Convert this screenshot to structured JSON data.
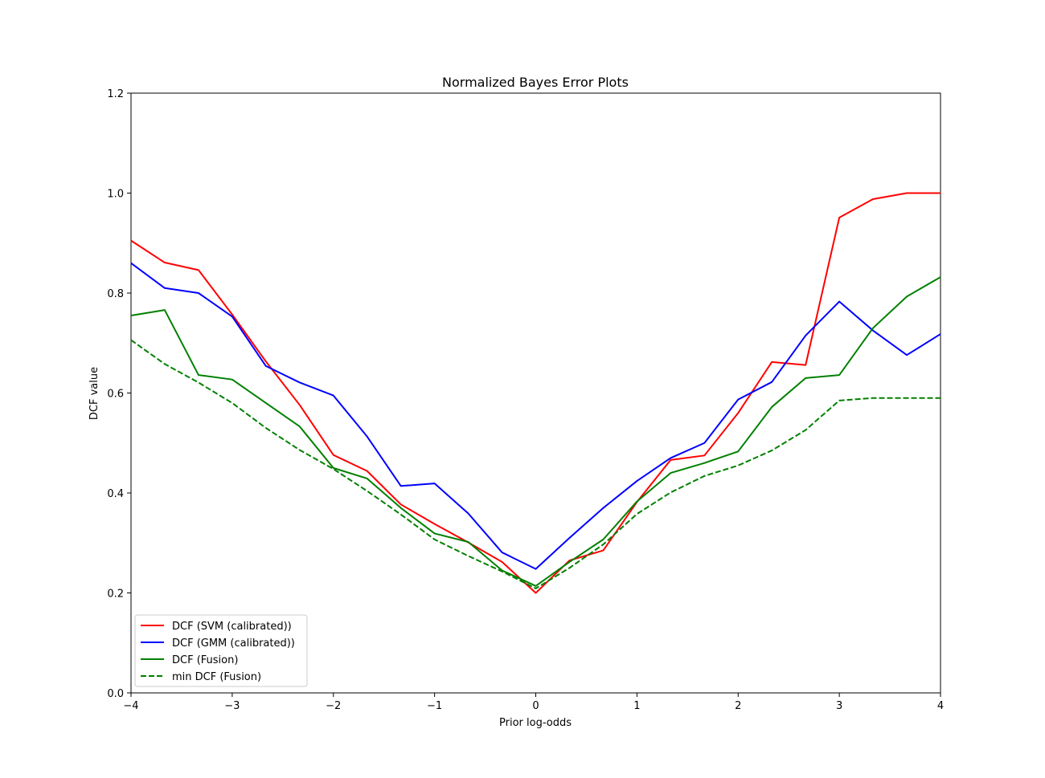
{
  "chart_data": {
    "type": "line",
    "title": "Normalized Bayes Error Plots",
    "xlabel": "Prior log-odds",
    "ylabel": "DCF value",
    "xlim": [
      -4,
      4
    ],
    "ylim": [
      0,
      1.2
    ],
    "x_ticks": [
      -4,
      -3,
      -2,
      -1,
      0,
      1,
      2,
      3,
      4
    ],
    "x_tick_labels": [
      "−4",
      "−3",
      "−2",
      "−1",
      "0",
      "1",
      "2",
      "3",
      "4"
    ],
    "y_ticks": [
      0.0,
      0.2,
      0.4,
      0.6,
      0.8,
      1.0,
      1.2
    ],
    "y_tick_labels": [
      "0.0",
      "0.2",
      "0.4",
      "0.6",
      "0.8",
      "1.0",
      "1.2"
    ],
    "grid": false,
    "legend_position": "lower-left",
    "x": [
      -4,
      -3.667,
      -3.333,
      -3,
      -2.667,
      -2.333,
      -2,
      -1.667,
      -1.333,
      -1,
      -0.667,
      -0.333,
      0,
      0.333,
      0.667,
      1,
      1.333,
      1.667,
      2,
      2.333,
      2.667,
      3,
      3.333,
      3.667,
      4
    ],
    "series": [
      {
        "name": "DCF (SVM (calibrated))",
        "color": "#ff0000",
        "dash": "solid",
        "values": [
          0.905,
          0.861,
          0.846,
          0.757,
          0.663,
          0.576,
          0.476,
          0.444,
          0.377,
          0.338,
          0.301,
          0.262,
          0.2,
          0.265,
          0.285,
          0.382,
          0.466,
          0.475,
          0.56,
          0.662,
          0.656,
          0.951,
          0.988,
          1.0,
          1.0
        ]
      },
      {
        "name": "DCF (GMM (calibrated))",
        "color": "#0000ff",
        "dash": "solid",
        "values": [
          0.86,
          0.81,
          0.8,
          0.753,
          0.654,
          0.621,
          0.595,
          0.513,
          0.414,
          0.419,
          0.359,
          0.281,
          0.248,
          0.31,
          0.37,
          0.424,
          0.47,
          0.5,
          0.587,
          0.622,
          0.715,
          0.783,
          0.725,
          0.676,
          0.718
        ]
      },
      {
        "name": "DCF (Fusion)",
        "color": "#008000",
        "dash": "solid",
        "values": [
          0.755,
          0.766,
          0.636,
          0.627,
          0.58,
          0.533,
          0.45,
          0.429,
          0.37,
          0.319,
          0.302,
          0.245,
          0.214,
          0.262,
          0.307,
          0.383,
          0.44,
          0.46,
          0.483,
          0.572,
          0.63,
          0.636,
          0.73,
          0.793,
          0.832
        ]
      },
      {
        "name": "min DCF (Fusion)",
        "color": "#008000",
        "dash": "dashed",
        "values": [
          0.706,
          0.658,
          0.621,
          0.58,
          0.53,
          0.486,
          0.448,
          0.404,
          0.357,
          0.307,
          0.274,
          0.243,
          0.209,
          0.25,
          0.297,
          0.358,
          0.401,
          0.434,
          0.455,
          0.485,
          0.526,
          0.585,
          0.59,
          0.59,
          0.59
        ]
      }
    ]
  }
}
